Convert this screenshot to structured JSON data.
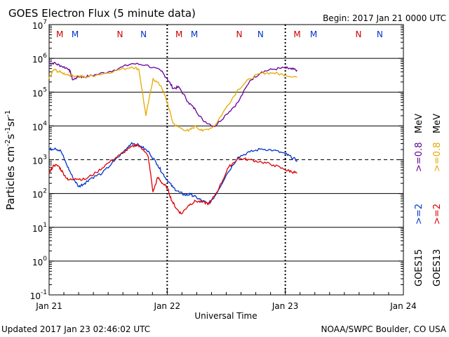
{
  "chart_data": {
    "type": "line",
    "title": "GOES Electron Flux (5 minute data)",
    "begin_label": "Begin: 2017 Jan 21 0000 UTC",
    "xlabel": "Universal Time",
    "ylabel_main": "Particles cm",
    "ylabel_sup1": "-2",
    "ylabel_mid1": "s",
    "ylabel_sup2": "-1",
    "ylabel_mid2": "sr",
    "ylabel_sup3": "-1",
    "yscale": "log",
    "ylim_exponent": [
      -1,
      7
    ],
    "y_tick_exponents": [
      7,
      6,
      5,
      4,
      3,
      2,
      1,
      0,
      -1
    ],
    "y_tick_base": "10",
    "x_range_days": [
      0,
      3
    ],
    "x_ticks": [
      {
        "day": 0,
        "label": "Jan 21"
      },
      {
        "day": 1,
        "label": "Jan 22"
      },
      {
        "day": 2,
        "label": "Jan 23"
      },
      {
        "day": 3,
        "label": "Jan 24"
      }
    ],
    "threshold_line_value": 1000,
    "solid_gridline_values": [
      1000000,
      100000,
      10000,
      100,
      10,
      1
    ],
    "markers": [
      {
        "day": 0.09,
        "label": "M",
        "color": "#cc0000"
      },
      {
        "day": 0.22,
        "label": "M",
        "color": "#0033cc"
      },
      {
        "day": 0.6,
        "label": "N",
        "color": "#cc0000"
      },
      {
        "day": 0.8,
        "label": "N",
        "color": "#0033cc"
      },
      {
        "day": 1.1,
        "label": "M",
        "color": "#cc0000"
      },
      {
        "day": 1.23,
        "label": "M",
        "color": "#0033cc"
      },
      {
        "day": 1.61,
        "label": "N",
        "color": "#cc0000"
      },
      {
        "day": 1.79,
        "label": "N",
        "color": "#0033cc"
      },
      {
        "day": 2.1,
        "label": "M",
        "color": "#cc0000"
      },
      {
        "day": 2.24,
        "label": "M",
        "color": "#0033cc"
      },
      {
        "day": 2.62,
        "label": "N",
        "color": "#cc0000"
      },
      {
        "day": 2.8,
        "label": "N",
        "color": "#0033cc"
      }
    ],
    "series": [
      {
        "name": "GOES15 >=0.8 MeV",
        "color": "#660099",
        "x": [
          0.0,
          0.04,
          0.1,
          0.17,
          0.2,
          0.25,
          0.3,
          0.4,
          0.55,
          0.7,
          0.82,
          0.95,
          1.0,
          1.05,
          1.1,
          1.18,
          1.24,
          1.3,
          1.4,
          1.5,
          1.6,
          1.7,
          1.8,
          1.9,
          2.0,
          2.05,
          2.1
        ],
        "y": [
          700000,
          730000,
          600000,
          480000,
          230000,
          290000,
          280000,
          330000,
          450000,
          700000,
          640000,
          420000,
          250000,
          130000,
          140000,
          50000,
          30000,
          15000,
          9500,
          22000,
          50000,
          220000,
          400000,
          480000,
          520000,
          480000,
          450000
        ]
      },
      {
        "name": "GOES13 >=0.8 MeV",
        "color": "#e6a800",
        "x": [
          0.0,
          0.04,
          0.1,
          0.17,
          0.25,
          0.3,
          0.4,
          0.55,
          0.7,
          0.76,
          0.82,
          0.88,
          0.95,
          1.0,
          1.05,
          1.1,
          1.18,
          1.24,
          1.3,
          1.4,
          1.5,
          1.6,
          1.7,
          1.8,
          1.9,
          2.0,
          2.1
        ],
        "y": [
          250000,
          470000,
          380000,
          320000,
          300000,
          280000,
          320000,
          420000,
          560000,
          480000,
          20000,
          250000,
          150000,
          50000,
          12000,
          9000,
          7000,
          10000,
          7000,
          10000,
          35000,
          120000,
          250000,
          370000,
          370000,
          320000,
          280000
        ]
      },
      {
        "name": "GOES15 >=2 MeV",
        "color": "#0033cc",
        "x": [
          0.0,
          0.05,
          0.1,
          0.15,
          0.2,
          0.25,
          0.3,
          0.35,
          0.45,
          0.55,
          0.65,
          0.7,
          0.78,
          0.85,
          0.92,
          0.96,
          1.0,
          1.05,
          1.1,
          1.15,
          1.2,
          1.25,
          1.3,
          1.35,
          1.4,
          1.5,
          1.6,
          1.7,
          1.8,
          1.9,
          2.0,
          2.05,
          2.1
        ],
        "y": [
          2000,
          2200,
          1800,
          700,
          300,
          160,
          200,
          280,
          400,
          900,
          2000,
          3200,
          2500,
          1600,
          700,
          400,
          250,
          150,
          110,
          90,
          95,
          75,
          60,
          50,
          80,
          350,
          1200,
          1700,
          2100,
          1900,
          1500,
          1200,
          950
        ]
      },
      {
        "name": "GOES13 >=2 MeV",
        "color": "#dd0000",
        "x": [
          0.0,
          0.04,
          0.08,
          0.12,
          0.16,
          0.22,
          0.3,
          0.4,
          0.5,
          0.6,
          0.68,
          0.74,
          0.8,
          0.84,
          0.88,
          0.92,
          0.96,
          1.0,
          1.04,
          1.08,
          1.12,
          1.18,
          1.24,
          1.3,
          1.36,
          1.44,
          1.52,
          1.6,
          1.7,
          1.8,
          1.9,
          2.0,
          2.05,
          2.1
        ],
        "y": [
          400,
          700,
          650,
          400,
          250,
          280,
          260,
          420,
          800,
          1400,
          2200,
          2800,
          2000,
          1200,
          110,
          300,
          200,
          150,
          60,
          35,
          25,
          45,
          60,
          55,
          50,
          150,
          600,
          1100,
          1000,
          850,
          700,
          500,
          450,
          400
        ]
      }
    ],
    "legend_right": {
      "goes15": "GOES15",
      "goes13": "GOES13",
      "ge2_15": ">=2",
      "ge2_13": ">=2",
      "ge08_15": ">=0.8",
      "ge08_13": ">=0.8",
      "mev": "MeV",
      "color_ge2_15": "#0033cc",
      "color_ge2_13": "#dd0000",
      "color_ge08_15": "#660099",
      "color_ge08_13": "#e6a800"
    }
  },
  "footer": {
    "updated": "Updated 2017 Jan 23 02:46:02 UTC",
    "source": "NOAA/SWPC Boulder, CO USA"
  }
}
